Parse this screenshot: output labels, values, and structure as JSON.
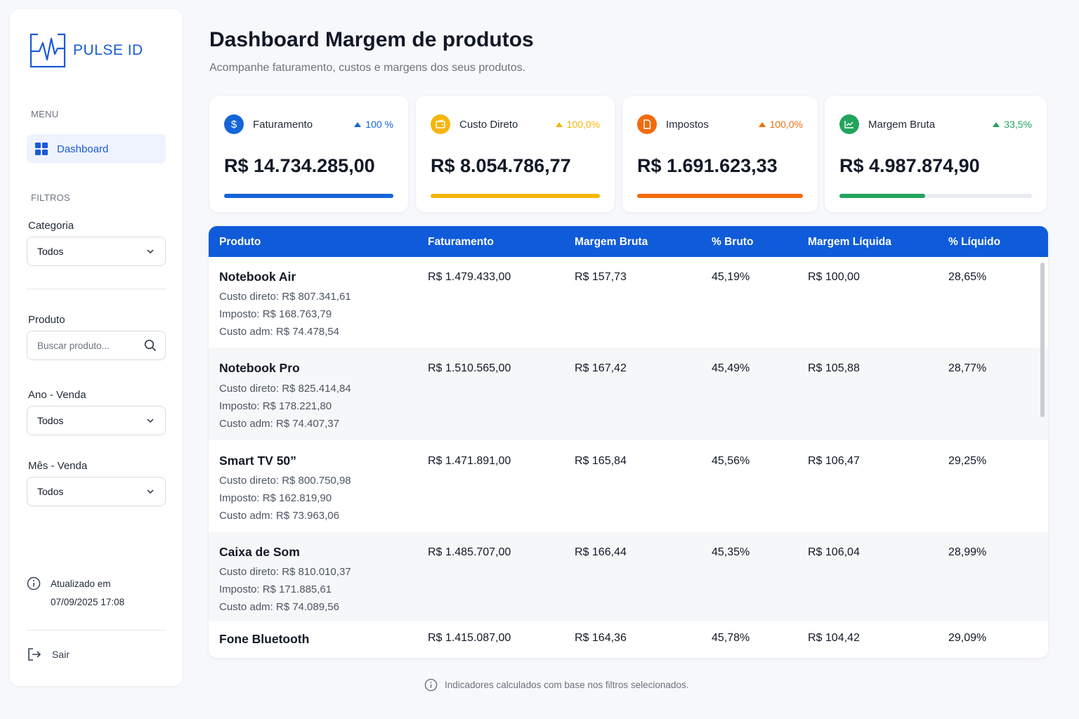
{
  "brand": {
    "name": "PULSE ID"
  },
  "sidebar": {
    "menu_label": "MENU",
    "nav": [
      {
        "label": "Dashboard",
        "icon": "dashboard-grid-icon"
      }
    ],
    "filters_label": "FILTROS",
    "filters": {
      "category": {
        "label": "Categoria",
        "value": "Todos"
      },
      "product": {
        "label": "Produto",
        "placeholder": "Buscar produto..."
      },
      "year": {
        "label": "Ano - Venda",
        "value": "Todos"
      },
      "month": {
        "label": "Mês - Venda",
        "value": "Todos"
      }
    },
    "updated": {
      "label": "Atualizado em",
      "datetime": "07/09/2025 17:08"
    },
    "logout_label": "Sair"
  },
  "header": {
    "title": "Dashboard Margem de produtos",
    "subtitle": "Acompanhe faturamento, custos e margens dos seus produtos."
  },
  "kpis": [
    {
      "label": "Faturamento",
      "change": "100 %",
      "value": "R$ 14.734.285,00",
      "color": "#1565d8",
      "progress": 1.0,
      "icon": "dollar-icon"
    },
    {
      "label": "Custo Direto",
      "change": "100,0%",
      "value": "R$ 8.054.786,77",
      "color": "#f5b50a",
      "progress": 1.0,
      "icon": "wallet-icon"
    },
    {
      "label": "Impostos",
      "change": "100,0%",
      "value": "R$ 1.691.623,33",
      "color": "#f26b0c",
      "progress": 1.0,
      "icon": "document-icon"
    },
    {
      "label": "Margem Bruta",
      "change": "33,5%",
      "value": "R$ 4.987.874,90",
      "color": "#22a45d",
      "progress": 0.445,
      "icon": "trend-chart-icon"
    }
  ],
  "table": {
    "columns": [
      "Produto",
      "Faturamento",
      "Margem Bruta",
      "% Bruto",
      "Margem Líquida",
      "% Líquido"
    ],
    "rows": [
      {
        "product": "Notebook Air",
        "direct_cost": "Custo direto: R$ 807.341,61",
        "tax": "Imposto: R$ 168.763,79",
        "admin_cost": "Custo adm: R$ 74.478,54",
        "revenue": "R$ 1.479.433,00",
        "gross_margin": "R$ 157,73",
        "gross_pct": "45,19%",
        "net_margin": "R$ 100,00",
        "net_pct": "28,65%"
      },
      {
        "product": "Notebook Pro",
        "direct_cost": "Custo direto: R$ 825.414,84",
        "tax": "Imposto: R$ 178.221,80",
        "admin_cost": "Custo adm: R$ 74.407,37",
        "revenue": "R$ 1.510.565,00",
        "gross_margin": "R$ 167,42",
        "gross_pct": "45,49%",
        "net_margin": "R$ 105,88",
        "net_pct": "28,77%"
      },
      {
        "product": "Smart TV 50”",
        "direct_cost": "Custo direto: R$ 800.750,98",
        "tax": "Imposto: R$ 162.819,90",
        "admin_cost": "Custo adm: R$ 73.963,06",
        "revenue": "R$ 1.471.891,00",
        "gross_margin": "R$ 165,84",
        "gross_pct": "45,56%",
        "net_margin": "R$ 106,47",
        "net_pct": "29,25%"
      },
      {
        "product": "Caixa de Som",
        "direct_cost": "Custo direto: R$ 810.010,37",
        "tax": "Imposto: R$ 171.885,61",
        "admin_cost": "Custo adm: R$ 74.089,56",
        "revenue": "R$ 1.485.707,00",
        "gross_margin": "R$ 166,44",
        "gross_pct": "45,35%",
        "net_margin": "R$ 106,04",
        "net_pct": "28,99%"
      },
      {
        "product": "Fone Bluetooth",
        "revenue": "R$ 1.415.087,00",
        "gross_margin": "R$ 164,36",
        "gross_pct": "45,78%",
        "net_margin": "R$ 104,42",
        "net_pct": "29,09%"
      }
    ]
  },
  "footnote": "Indicadores calculados com base nos filtros selecionados.",
  "colors": {
    "primary": "#0f5bd9",
    "accent": "#1a5ad8"
  }
}
